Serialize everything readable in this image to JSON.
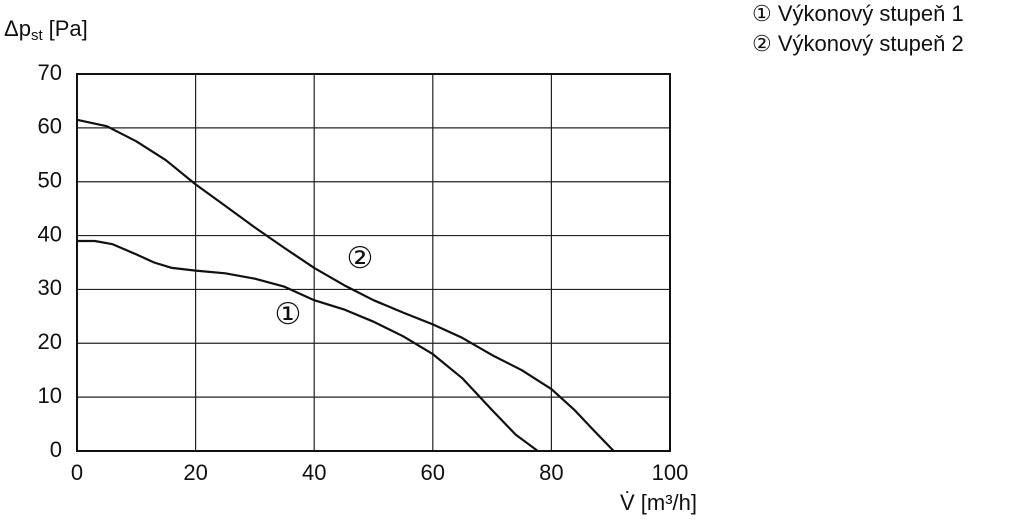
{
  "chart_data": {
    "type": "line",
    "y_label": {
      "symbol": "Δp",
      "sub": "st",
      "unit": "[Pa]"
    },
    "x_label": "V̇ [m³/h]",
    "series": [
      {
        "name": "① Výkonový stupeň 1",
        "marker": "①",
        "color": "#111111",
        "x": [
          0,
          3,
          6,
          10,
          13,
          16,
          20,
          25,
          30,
          35,
          40,
          45,
          50,
          55,
          60,
          65,
          70,
          74,
          77.7
        ],
        "values": [
          39,
          39,
          38.4,
          36.5,
          35,
          34,
          33.5,
          33,
          32,
          30.5,
          28,
          26.3,
          24,
          21.3,
          18,
          13.5,
          7.6,
          3,
          0
        ]
      },
      {
        "name": "② Výkonový stupeň 2",
        "marker": "②",
        "color": "#111111",
        "x": [
          0,
          5,
          10,
          15,
          20,
          25,
          30,
          35,
          40,
          45,
          50,
          55,
          60,
          65,
          70,
          75,
          80,
          84,
          87,
          90.5
        ],
        "values": [
          61.5,
          60.3,
          57.5,
          54,
          49.5,
          45.5,
          41.5,
          37.7,
          34,
          30.8,
          28,
          25.7,
          23.5,
          21,
          17.8,
          15,
          11.5,
          7.5,
          4,
          0
        ]
      }
    ],
    "xlim": [
      0,
      100
    ],
    "xticks": [
      0,
      20,
      40,
      60,
      80,
      100
    ],
    "ylim": [
      0,
      70
    ],
    "yticks": [
      0,
      10,
      20,
      30,
      40,
      50,
      60,
      70
    ],
    "grid": true
  }
}
